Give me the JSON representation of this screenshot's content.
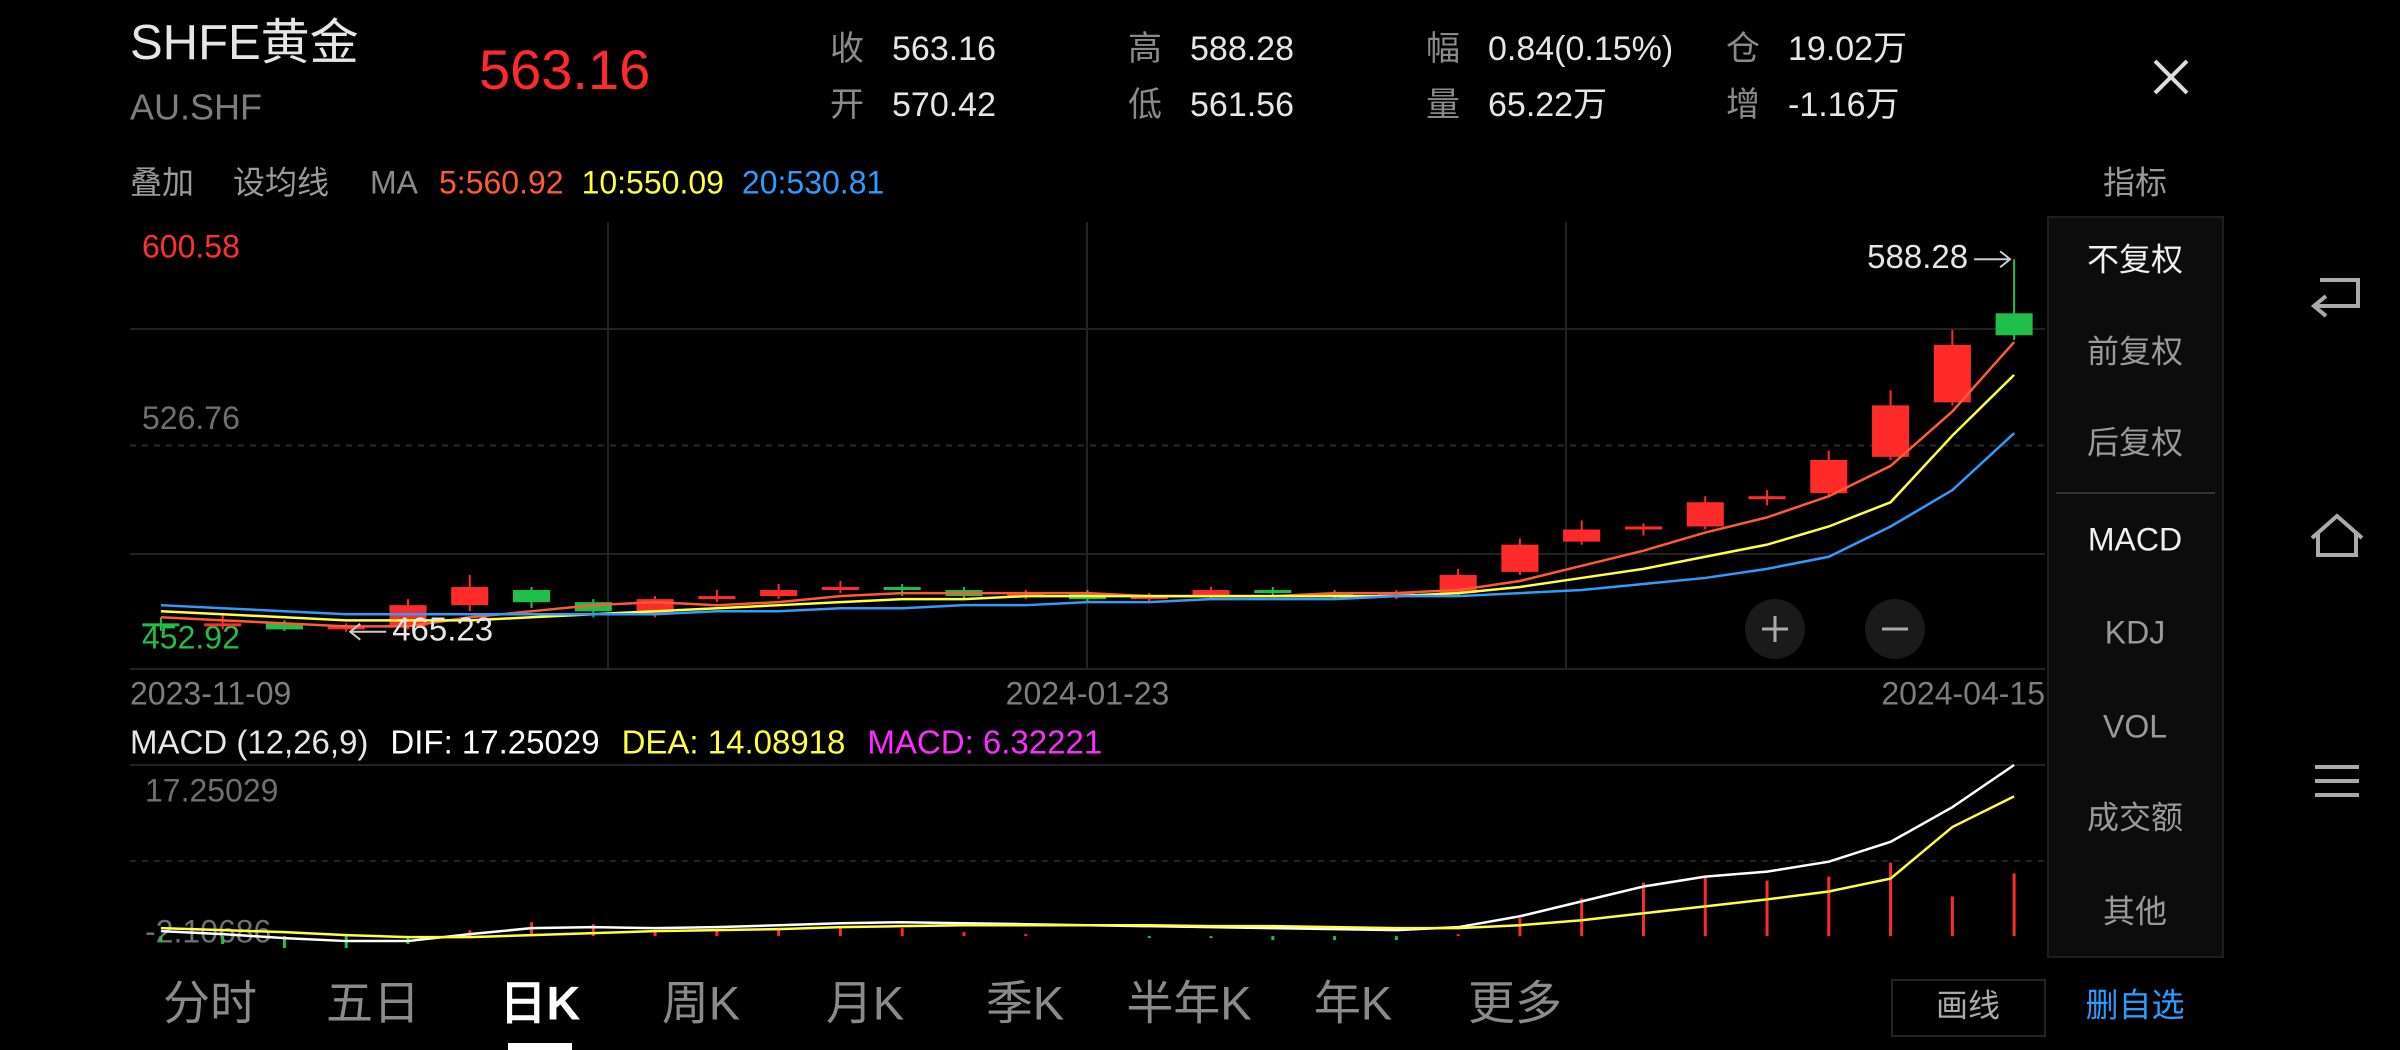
{
  "header": {
    "title": "SHFE黄金",
    "code": "AU.SHF",
    "price": 563.16,
    "quotes": [
      {
        "label": "收",
        "value": 563.16
      },
      {
        "label": "开",
        "value": 570.42
      },
      {
        "label": "高",
        "value": 588.28
      },
      {
        "label": "低",
        "value": 561.56
      },
      {
        "label": "幅",
        "value": "0.84(0.15%)"
      },
      {
        "label": "量",
        "value": "65.22万"
      },
      {
        "label": "仓",
        "value": "19.02万"
      },
      {
        "label": "增",
        "value": "-1.16万"
      }
    ]
  },
  "toolbar": {
    "items": [
      "叠加",
      "设均线"
    ],
    "ma_label": "MA",
    "indicator": "指标"
  },
  "chart": {
    "type": "candlestick",
    "open": [
      468,
      467,
      468,
      466,
      467,
      474,
      479,
      475,
      471,
      476,
      477,
      479,
      480,
      479,
      477,
      478,
      476,
      477,
      479,
      478,
      477,
      478,
      485,
      495,
      499,
      500,
      509,
      511,
      523,
      541,
      570.42
    ],
    "close": [
      467,
      468,
      466,
      467,
      474,
      480,
      475,
      472,
      476,
      477,
      479,
      480,
      479,
      477,
      478,
      476,
      477,
      479,
      478,
      477,
      478,
      484,
      494,
      499,
      500,
      508,
      510,
      522,
      540,
      560,
      563.16
    ],
    "high": [
      470,
      471,
      469,
      468,
      476,
      484,
      480,
      476,
      477,
      479,
      481,
      482,
      481,
      480,
      479,
      479,
      478,
      480,
      480,
      479,
      479,
      486,
      496,
      502,
      501,
      510,
      512,
      525,
      545,
      565,
      588.28
    ],
    "low": [
      465.5,
      466,
      465.5,
      465.23,
      466,
      472,
      473,
      470,
      470,
      475,
      476,
      478,
      477,
      476,
      476,
      475,
      475,
      476,
      477,
      476,
      476,
      477,
      484,
      494,
      497,
      499,
      507,
      510,
      522,
      540,
      561.56
    ],
    "up_color": "#ff2a2a",
    "down_color": "#1fbf4a",
    "ylim": [
      452.92,
      600.58
    ],
    "yticks": [
      526.76
    ],
    "x_labels": [
      "2023-11-09",
      "2024-01-23",
      "2024-04-15"
    ],
    "series": [
      {
        "label": "5:560.92",
        "color": "#ff5a36",
        "values": [
          470,
          469,
          468,
          467,
          467,
          470,
          472,
          474,
          475,
          474,
          475,
          477,
          478,
          478,
          478,
          478,
          477,
          477,
          477,
          478,
          478,
          479,
          482,
          487,
          492,
          498,
          503,
          510,
          520,
          538,
          560.92
        ]
      },
      {
        "label": "10:550.09",
        "color": "#ffff3c",
        "values": [
          472,
          471,
          470,
          469,
          469,
          469,
          470,
          471,
          472,
          473,
          474,
          475,
          476,
          476,
          477,
          477,
          477,
          477,
          477,
          477,
          477,
          478,
          480,
          483,
          486,
          490,
          494,
          500,
          508,
          530,
          550.09
        ]
      },
      {
        "label": "20:530.81",
        "color": "#2f9bff",
        "values": [
          474,
          473,
          472,
          471,
          471,
          471,
          471,
          471,
          471,
          472,
          472,
          473,
          473,
          474,
          474,
          475,
          475,
          476,
          476,
          476,
          477,
          477,
          478,
          479,
          481,
          483,
          486,
          490,
          500,
          512,
          530.81
        ]
      }
    ]
  },
  "macd": {
    "title": "MACD (12,26,9)",
    "dif_label": "DIF: 17.25029",
    "dea_label": "DEA: 14.08918",
    "macd_label": "MACD: 6.32221",
    "ylim": [
      -2.10686,
      17.25029
    ],
    "dif": [
      0.5,
      0.2,
      -0.2,
      -0.5,
      -0.5,
      0.2,
      0.8,
      0.9,
      0.8,
      0.9,
      1.1,
      1.3,
      1.4,
      1.3,
      1.2,
      1.1,
      1.0,
      0.9,
      0.8,
      0.7,
      0.6,
      0.9,
      2.0,
      3.5,
      5.0,
      6.0,
      6.5,
      7.5,
      9.5,
      13.0,
      17.25029
    ],
    "dea": [
      0.8,
      0.6,
      0.4,
      0.1,
      -0.1,
      -0.1,
      0.1,
      0.3,
      0.5,
      0.6,
      0.7,
      0.9,
      1.0,
      1.1,
      1.1,
      1.1,
      1.1,
      1.0,
      1.0,
      0.9,
      0.8,
      0.8,
      1.1,
      1.6,
      2.3,
      3.0,
      3.7,
      4.5,
      5.8,
      11.0,
      14.08918
    ],
    "hist": [
      -0.6,
      -0.8,
      -1.2,
      -1.2,
      -0.8,
      0.6,
      1.4,
      1.2,
      0.6,
      0.6,
      0.8,
      0.8,
      0.8,
      0.4,
      0.2,
      0,
      -0.2,
      -0.2,
      -0.4,
      -0.4,
      -0.4,
      0.2,
      1.8,
      3.8,
      5.4,
      6,
      5.6,
      6,
      7.4,
      4,
      6.32221
    ],
    "dif_color": "#ffffff",
    "dea_color": "#ffff3c",
    "macd_color": "#ff2bff"
  },
  "side_menu": {
    "items": [
      "不复权",
      "前复权",
      "后复权",
      "MACD",
      "KDJ",
      "VOL",
      "成交额",
      "其他"
    ],
    "selected": [
      0,
      3
    ]
  },
  "tabs": {
    "items": [
      "分时",
      "五日",
      "日K",
      "周K",
      "月K",
      "季K",
      "半年K",
      "年K",
      "更多"
    ],
    "active": 2
  },
  "buttons": [
    "画线",
    "删自选"
  ]
}
